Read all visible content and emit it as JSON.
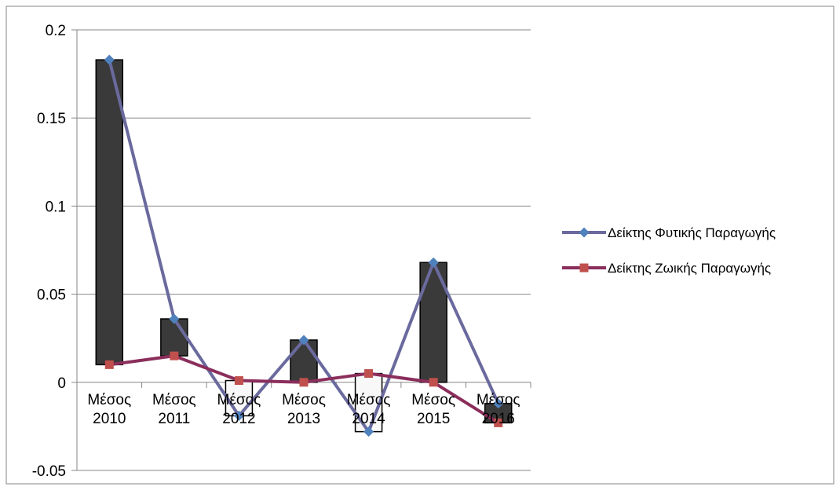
{
  "chart_data": {
    "type": "line",
    "title": "",
    "xlabel": "",
    "ylabel": "",
    "categories": [
      [
        "Μέσος",
        "2010"
      ],
      [
        "Μέσος",
        "2011"
      ],
      [
        "Μέσος",
        "2012"
      ],
      [
        "Μέσος",
        "2013"
      ],
      [
        "Μέσος",
        "2014"
      ],
      [
        "Μέσος",
        "2015"
      ],
      [
        "Μέσος",
        "2016"
      ]
    ],
    "ylim": [
      -0.05,
      0.2
    ],
    "yticks": [
      -0.05,
      0,
      0.05,
      0.1,
      0.15,
      0.2
    ],
    "ytick_labels": [
      "-0.05",
      "0",
      "0.05",
      "0.1",
      "0.15",
      "0.2"
    ],
    "grid": true,
    "legend": "right",
    "up_down_bars": true,
    "series": [
      {
        "name": "Δείκτης Φυτικής Παραγωγής",
        "values": [
          0.183,
          0.036,
          -0.019,
          0.024,
          -0.028,
          0.068,
          -0.012
        ],
        "color": "#6a6a9e",
        "marker": "diamond",
        "marker_color": "#4f81bd"
      },
      {
        "name": "Δείκτης Ζωικής Παραγωγής",
        "values": [
          0.01,
          0.015,
          0.001,
          0.0,
          0.005,
          0.0,
          -0.023
        ],
        "color": "#8b2e5c",
        "marker": "square",
        "marker_color": "#c0504d"
      }
    ],
    "colors": {
      "up_bar": "#3a3a3a",
      "down_bar": "#f8f8f8",
      "grid": "#868686",
      "border": "#868686"
    }
  }
}
